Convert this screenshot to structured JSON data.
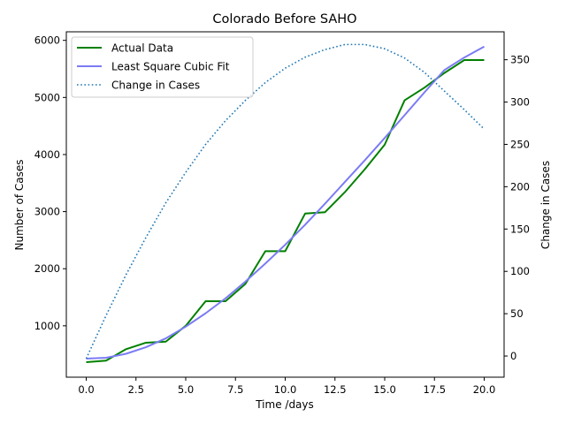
{
  "chart_data": {
    "type": "line",
    "title": "Colorado Before SAHO",
    "xlabel": "Time /days",
    "ylabel_left": "Number of Cases",
    "ylabel_right": "Change in Cases",
    "xlim": [
      -1,
      21
    ],
    "ylim_left": [
      100,
      6150
    ],
    "ylim_right": [
      -25,
      383
    ],
    "x_ticks": [
      0.0,
      2.5,
      5.0,
      7.5,
      10.0,
      12.5,
      15.0,
      17.5,
      20.0
    ],
    "x_tick_labels": [
      "0.0",
      "2.5",
      "5.0",
      "7.5",
      "10.0",
      "12.5",
      "15.0",
      "17.5",
      "20.0"
    ],
    "y_left_ticks": [
      1000,
      2000,
      3000,
      4000,
      5000,
      6000
    ],
    "y_left_tick_labels": [
      "1000",
      "2000",
      "3000",
      "4000",
      "5000",
      "6000"
    ],
    "y_right_ticks": [
      0,
      50,
      100,
      150,
      200,
      250,
      300,
      350
    ],
    "y_right_tick_labels": [
      "0",
      "50",
      "100",
      "150",
      "200",
      "250",
      "300",
      "350"
    ],
    "legend_position": "top-left",
    "x": [
      0,
      1,
      2,
      3,
      4,
      5,
      6,
      7,
      8,
      9,
      10,
      11,
      12,
      13,
      14,
      15,
      16,
      17,
      18,
      19,
      20
    ],
    "series": [
      {
        "name": "Actual Data",
        "axis": "left",
        "color": "#008000",
        "style": "solid",
        "values": [
          363,
          390,
          591,
          704,
          723,
          1000,
          1430,
          1430,
          1734,
          2307,
          2307,
          2966,
          2990,
          3342,
          3742,
          4173,
          4950,
          5172,
          5429,
          5655,
          5655
        ]
      },
      {
        "name": "Least Square Cubic Fit",
        "axis": "left",
        "color": "#7b7bf5",
        "style": "solid",
        "values": [
          425,
          440,
          510,
          625,
          780,
          985,
          1220,
          1480,
          1775,
          2090,
          2420,
          2770,
          3140,
          3520,
          3900,
          4290,
          4690,
          5090,
          5480,
          5700,
          5890
        ]
      },
      {
        "name": "Change in Cases",
        "axis": "right",
        "color": "#1f77b4",
        "style": "dotted",
        "values": [
          -3,
          48,
          96,
          140,
          181,
          217,
          250,
          278,
          302,
          323,
          340,
          353,
          362,
          368,
          368,
          363,
          352,
          335,
          313,
          291,
          268
        ]
      }
    ]
  }
}
